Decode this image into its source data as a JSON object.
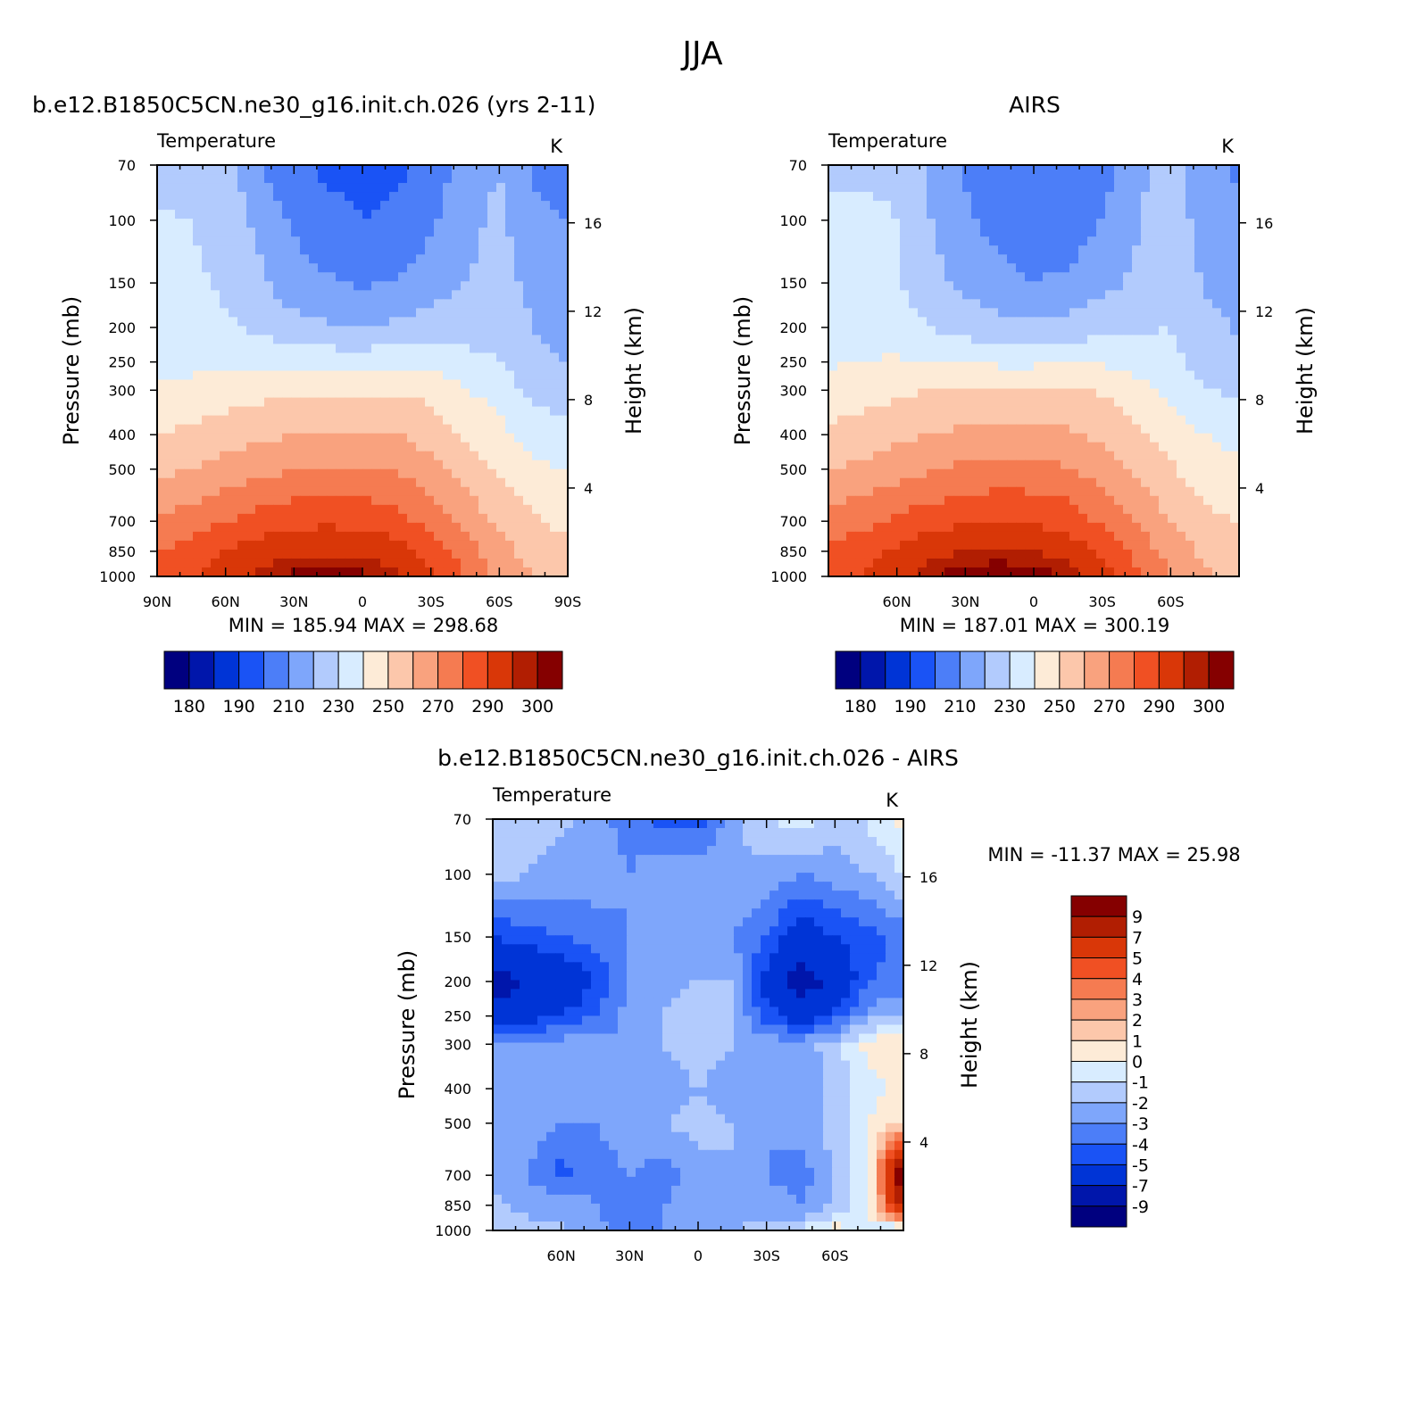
{
  "page": {
    "super_title": "JJA"
  },
  "palettes": {
    "abs": [
      "#00007f",
      "#0016ab",
      "#0034d6",
      "#1a53f5",
      "#4c7ef8",
      "#7ea6fb",
      "#b2cbfd",
      "#d8ecff",
      "#fdebd7",
      "#fcc7ab",
      "#f9a27e",
      "#f57b51",
      "#f05023",
      "#d93708",
      "#b11e02",
      "#850000"
    ],
    "diff": [
      "#00007f",
      "#0016ab",
      "#0034d6",
      "#1a53f5",
      "#4c7ef8",
      "#7ea6fb",
      "#b2cbfd",
      "#d8ecff",
      "#fdebd7",
      "#fcc7ab",
      "#f9a27e",
      "#f57b51",
      "#f05023",
      "#d93708",
      "#b11e02",
      "#850000"
    ]
  },
  "chart_data": [
    {
      "type": "heatmap",
      "title": "b.e12.B1850C5CN.ne30_g16.init.ch.026 (yrs 2-11)",
      "subtitle_left": "Temperature",
      "subtitle_right": "K",
      "ylabel": "Pressure (mb)",
      "ylabel_right": "Height (km)",
      "x_ticks": [
        "90N",
        "60N",
        "30N",
        "0",
        "30S",
        "60S",
        "90S"
      ],
      "x_tick_values": [
        90,
        60,
        30,
        0,
        -30,
        -60,
        -90
      ],
      "xlim": [
        90,
        -90
      ],
      "y_ticks": [
        "70",
        "100",
        "150",
        "200",
        "250",
        "300",
        "400",
        "500",
        "700",
        "850",
        "1000"
      ],
      "y_tick_values": [
        70,
        100,
        150,
        200,
        250,
        300,
        400,
        500,
        700,
        850,
        1000
      ],
      "ylim": [
        1000,
        70
      ],
      "y_log": true,
      "height_ticks": [
        "4",
        "8",
        "12",
        "16"
      ],
      "height_tick_values": [
        4,
        8,
        12,
        16
      ],
      "min_max_text": "MIN = 185.94   MAX = 298.68",
      "palette": "abs",
      "colorbar_levels": [
        "180",
        "190",
        "210",
        "230",
        "250",
        "270",
        "290",
        "300"
      ],
      "lat": [
        90,
        75,
        60,
        45,
        30,
        15,
        0,
        -15,
        -30,
        -45,
        -60,
        -75,
        -90
      ],
      "plev": [
        70,
        100,
        150,
        200,
        250,
        300,
        400,
        500,
        700,
        850,
        1000
      ],
      "values": [
        [
          210,
          212,
          215,
          200,
          192,
          188,
          187,
          188,
          193,
          205,
          210,
          198,
          195
        ],
        [
          222,
          220,
          216,
          207,
          199,
          193,
          190,
          192,
          198,
          207,
          212,
          203,
          200
        ],
        [
          223,
          222,
          218,
          212,
          204,
          201,
          199,
          201,
          205,
          210,
          214,
          207,
          203
        ],
        [
          223,
          223,
          222,
          218,
          214,
          211,
          210,
          212,
          215,
          216,
          217,
          210,
          206
        ],
        [
          226,
          227,
          228,
          227,
          227,
          226,
          226,
          227,
          227,
          223,
          220,
          213,
          210
        ],
        [
          232,
          233,
          235,
          237,
          238,
          239,
          239,
          239,
          237,
          231,
          225,
          218,
          215
        ],
        [
          240,
          242,
          245,
          248,
          250,
          251,
          251,
          250,
          246,
          239,
          233,
          226,
          223
        ],
        [
          248,
          250,
          254,
          257,
          260,
          261,
          261,
          259,
          253,
          245,
          238,
          232,
          229
        ],
        [
          262,
          265,
          270,
          274,
          277,
          278,
          277,
          274,
          266,
          257,
          248,
          241,
          237
        ],
        [
          270,
          274,
          280,
          285,
          288,
          289,
          288,
          284,
          275,
          265,
          254,
          246,
          242
        ],
        [
          275,
          279,
          286,
          292,
          297,
          298,
          297,
          292,
          282,
          270,
          258,
          250,
          246
        ]
      ]
    },
    {
      "type": "heatmap",
      "title": "AIRS",
      "subtitle_left": "Temperature",
      "subtitle_right": "K",
      "ylabel": "Pressure (mb)",
      "ylabel_right": "Height (km)",
      "x_ticks": [
        "60N",
        "30N",
        "0",
        "30S",
        "60S"
      ],
      "x_tick_values": [
        60,
        30,
        0,
        -30,
        -60
      ],
      "xlim": [
        90,
        -90
      ],
      "y_ticks": [
        "70",
        "100",
        "150",
        "200",
        "250",
        "300",
        "400",
        "500",
        "700",
        "850",
        "1000"
      ],
      "y_tick_values": [
        70,
        100,
        150,
        200,
        250,
        300,
        400,
        500,
        700,
        850,
        1000
      ],
      "ylim": [
        1000,
        70
      ],
      "y_log": true,
      "height_ticks": [
        "4",
        "8",
        "12",
        "16"
      ],
      "height_tick_values": [
        4,
        8,
        12,
        16
      ],
      "min_max_text": "MIN = 187.01   MAX = 300.19",
      "palette": "abs",
      "colorbar_levels": [
        "180",
        "190",
        "210",
        "230",
        "250",
        "270",
        "290",
        "300"
      ],
      "lat": [
        90,
        75,
        60,
        45,
        30,
        15,
        0,
        -15,
        -30,
        -45,
        -60,
        -75,
        -90
      ],
      "plev": [
        70,
        100,
        150,
        200,
        250,
        300,
        400,
        500,
        700,
        850,
        1000
      ],
      "values": [
        [
          214,
          216,
          218,
          207,
          198,
          192,
          190,
          191,
          196,
          208,
          213,
          203,
          198
        ],
        [
          225,
          224,
          220,
          210,
          202,
          196,
          192,
          194,
          200,
          209,
          215,
          206,
          202
        ],
        [
          226,
          225,
          221,
          214,
          207,
          203,
          200,
          202,
          207,
          212,
          217,
          209,
          205
        ],
        [
          227,
          227,
          225,
          220,
          216,
          213,
          212,
          213,
          217,
          219,
          220,
          213,
          209
        ],
        [
          229,
          230,
          231,
          230,
          229,
          228,
          228,
          229,
          229,
          226,
          223,
          216,
          213
        ],
        [
          234,
          236,
          238,
          240,
          241,
          241,
          241,
          241,
          239,
          234,
          228,
          221,
          218
        ],
        [
          242,
          244,
          247,
          250,
          252,
          253,
          253,
          252,
          248,
          242,
          236,
          230,
          227
        ],
        [
          250,
          252,
          256,
          259,
          262,
          263,
          263,
          261,
          255,
          248,
          241,
          235,
          232
        ],
        [
          264,
          267,
          272,
          276,
          279,
          280,
          279,
          276,
          268,
          259,
          250,
          243,
          239
        ],
        [
          272,
          276,
          282,
          287,
          290,
          291,
          290,
          286,
          277,
          267,
          256,
          248,
          244
        ],
        [
          277,
          281,
          288,
          294,
          299,
          300,
          299,
          294,
          284,
          272,
          260,
          252,
          248
        ]
      ]
    },
    {
      "type": "heatmap",
      "title": "b.e12.B1850C5CN.ne30_g16.init.ch.026 - AIRS",
      "subtitle_left": "Temperature",
      "subtitle_right": "K",
      "ylabel": "Pressure (mb)",
      "ylabel_right": "Height (km)",
      "x_ticks": [
        "60N",
        "30N",
        "0",
        "30S",
        "60S"
      ],
      "x_tick_values": [
        60,
        30,
        0,
        -30,
        -60
      ],
      "xlim": [
        90,
        -90
      ],
      "y_ticks": [
        "70",
        "100",
        "150",
        "200",
        "250",
        "300",
        "400",
        "500",
        "700",
        "850",
        "1000"
      ],
      "y_tick_values": [
        70,
        100,
        150,
        200,
        250,
        300,
        400,
        500,
        700,
        850,
        1000
      ],
      "ylim": [
        1000,
        70
      ],
      "y_log": true,
      "height_ticks": [
        "4",
        "8",
        "12",
        "16"
      ],
      "height_tick_values": [
        4,
        8,
        12,
        16
      ],
      "min_max_text": "MIN = -11.37   MAX =  25.98",
      "palette": "diff",
      "colorbar_levels": [
        "9",
        "7",
        "5",
        "4",
        "3",
        "2",
        "1",
        "0",
        "-1",
        "-2",
        "-3",
        "-4",
        "-5",
        "-7",
        "-9"
      ],
      "lat": [
        90,
        75,
        60,
        45,
        30,
        15,
        0,
        -15,
        -30,
        -45,
        -60,
        -75,
        -90
      ],
      "plev": [
        70,
        100,
        150,
        200,
        250,
        300,
        400,
        500,
        700,
        850,
        1000
      ],
      "values": [
        [
          -2.0,
          -1.5,
          -1.8,
          -2.5,
          -3.5,
          -4.5,
          -4.5,
          -2.5,
          -1.0,
          -0.5,
          -1.5,
          -0.8,
          0.5
        ],
        [
          -1.5,
          -2.0,
          -2.5,
          -2.5,
          -3.0,
          -2.0,
          -2.5,
          -2.0,
          -2.5,
          -3.0,
          -2.5,
          -2.0,
          -1.0
        ],
        [
          -5.0,
          -4.5,
          -4.0,
          -3.5,
          -3.0,
          -2.5,
          -2.5,
          -3.0,
          -4.0,
          -6.0,
          -5.0,
          -4.5,
          -3.5
        ],
        [
          -8.0,
          -7.0,
          -6.5,
          -5.0,
          -3.0,
          -2.5,
          -2.0,
          -2.0,
          -5.5,
          -8.0,
          -6.5,
          -4.0,
          -3.5
        ],
        [
          -6.5,
          -5.5,
          -5.0,
          -4.0,
          -2.5,
          -2.0,
          -1.0,
          -2.0,
          -4.5,
          -6.0,
          -4.5,
          -2.5,
          -2.0
        ],
        [
          -3.0,
          -3.0,
          -2.5,
          -2.5,
          -3.0,
          -2.0,
          -1.5,
          -2.0,
          -2.5,
          -2.5,
          -1.5,
          0.5,
          1.0
        ],
        [
          -2.5,
          -3.0,
          -3.0,
          -2.5,
          -3.0,
          -2.5,
          -2.0,
          -2.5,
          -3.0,
          -3.0,
          -1.5,
          -0.5,
          0.5
        ],
        [
          -2.0,
          -2.5,
          -3.0,
          -3.0,
          -2.5,
          -2.0,
          -1.5,
          -2.0,
          -3.0,
          -2.5,
          -1.5,
          0.0,
          1.0
        ],
        [
          -2.5,
          -3.0,
          -4.5,
          -3.5,
          -3.0,
          -3.5,
          -2.5,
          -2.0,
          -3.0,
          -3.5,
          -2.0,
          0.0,
          11.0
        ],
        [
          -1.5,
          -2.5,
          -2.0,
          -3.0,
          -4.0,
          -3.0,
          -2.5,
          -2.5,
          -2.5,
          -3.0,
          -2.0,
          0.0,
          8.0
        ],
        [
          -1.0,
          -1.5,
          -2.0,
          -2.5,
          -3.5,
          -3.0,
          -2.5,
          -2.0,
          -1.5,
          -1.0,
          0.5,
          -0.5,
          -1.5
        ]
      ]
    }
  ]
}
